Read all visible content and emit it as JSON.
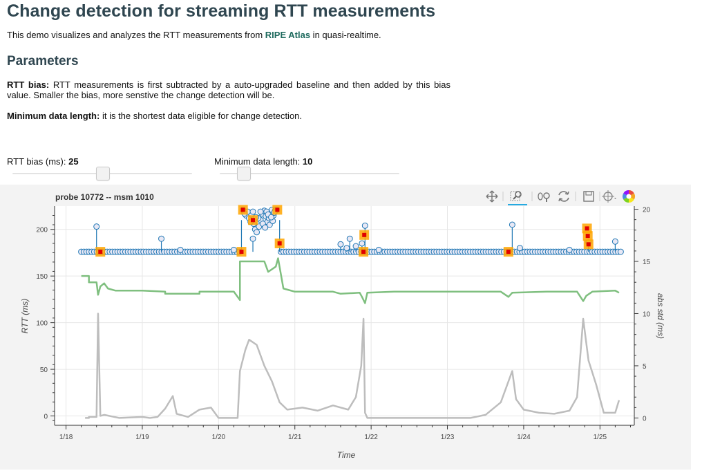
{
  "page": {
    "title": "Change detection for streaming RTT measurements",
    "intro_before": "This demo visualizes and analyzes the RTT measurements from ",
    "intro_link": "RIPE Atlas",
    "intro_after": " in quasi-realtime.",
    "section_title": "Parameters",
    "param1_label": "RTT bias:",
    "param1_text": " RTT measurements is first subtracted by a auto-upgraded baseline and then added by this bias value. Smaller the bias, more senstive the change detection will be.",
    "param2_label": "Minimum data length:",
    "param2_text": " it is the shortest data eligible for change detection."
  },
  "controls": {
    "bias_label": "RTT bias (ms): ",
    "bias_value": "25",
    "bias_fraction": 0.5,
    "minlen_label": "Minimum data length: ",
    "minlen_value": "10",
    "minlen_fraction": 0.13
  },
  "toolbar": {
    "tools": [
      "pan-icon",
      "box-zoom-icon",
      "wheel-zoom-icon",
      "reset-icon",
      "save-icon",
      "hover-icon",
      "bokeh-logo-icon"
    ],
    "active_tool": "box-zoom-icon"
  },
  "chart_data": {
    "type": "line",
    "title": "probe 10772 -- msm 1010",
    "xlabel": "Time",
    "ylabel": "RTT (ms)",
    "y2label": "abs std (ms)",
    "x_ticks": [
      "1/18",
      "1/19",
      "1/20",
      "1/21",
      "1/22",
      "1/23",
      "1/24",
      "1/25"
    ],
    "y_ticks": [
      0,
      50,
      100,
      150,
      200
    ],
    "y2_ticks": [
      0,
      5,
      10,
      15,
      20
    ],
    "xlim": [
      -0.15,
      7.45
    ],
    "ylim": [
      -10,
      225
    ],
    "y2lim": [
      -0.7,
      20.3
    ],
    "grid": true,
    "colors": {
      "rtt": "#1f77b4",
      "marker_fill": "#e8e8f5",
      "baseline": "#7fbf7f",
      "std": "#bdbdbd",
      "change_outer": "#ffa500",
      "change_inner": "#e00000"
    },
    "series": [
      {
        "name": "RTT",
        "kind": "stem",
        "outliers": [
          [
            0.4,
            203
          ],
          [
            1.25,
            190
          ],
          [
            1.5,
            178
          ],
          [
            2.2,
            178
          ],
          [
            2.45,
            190
          ],
          [
            3.6,
            184
          ],
          [
            3.68,
            180
          ],
          [
            3.72,
            190
          ],
          [
            3.8,
            182
          ],
          [
            3.88,
            185
          ],
          [
            3.92,
            204
          ],
          [
            4.1,
            178
          ],
          [
            5.85,
            205
          ],
          [
            5.95,
            180
          ],
          [
            6.6,
            178
          ],
          [
            6.85,
            186
          ],
          [
            7.2,
            187
          ]
        ],
        "base_level": 176,
        "step_level_hi": 210,
        "step_range": [
          2.3,
          2.8
        ]
      },
      {
        "name": "baseline",
        "kind": "line",
        "points": [
          [
            0.2,
            13.6
          ],
          [
            0.3,
            13.6
          ],
          [
            0.3,
            13.0
          ],
          [
            0.4,
            13.0
          ],
          [
            0.42,
            11.8
          ],
          [
            0.45,
            12.6
          ],
          [
            0.5,
            12.9
          ],
          [
            0.55,
            12.4
          ],
          [
            0.65,
            12.2
          ],
          [
            1.0,
            12.2
          ],
          [
            1.3,
            12.1
          ],
          [
            1.3,
            11.9
          ],
          [
            1.75,
            11.9
          ],
          [
            1.75,
            12.1
          ],
          [
            2.2,
            12.1
          ],
          [
            2.28,
            11.3
          ],
          [
            2.28,
            15.0
          ],
          [
            2.6,
            15.0
          ],
          [
            2.65,
            14.0
          ],
          [
            2.75,
            14.5
          ],
          [
            2.78,
            15.3
          ],
          [
            2.85,
            12.4
          ],
          [
            3.0,
            12.1
          ],
          [
            3.5,
            12.1
          ],
          [
            3.6,
            11.9
          ],
          [
            3.85,
            12.0
          ],
          [
            3.88,
            11.6
          ],
          [
            3.92,
            11.0
          ],
          [
            3.95,
            12.0
          ],
          [
            4.3,
            12.1
          ],
          [
            5.7,
            12.1
          ],
          [
            5.8,
            11.6
          ],
          [
            5.85,
            12.0
          ],
          [
            6.3,
            12.1
          ],
          [
            6.7,
            12.1
          ],
          [
            6.78,
            11.2
          ],
          [
            6.82,
            11.7
          ],
          [
            6.9,
            12.1
          ],
          [
            7.2,
            12.2
          ],
          [
            7.25,
            12.0
          ]
        ],
        "color": "#7fbf7f"
      },
      {
        "name": "abs std",
        "kind": "line",
        "points": [
          [
            0.25,
            0.0
          ],
          [
            0.3,
            0.0
          ],
          [
            0.3,
            0.1
          ],
          [
            0.4,
            0.1
          ],
          [
            0.42,
            10.0
          ],
          [
            0.45,
            0.2
          ],
          [
            0.5,
            0.3
          ],
          [
            0.7,
            0.0
          ],
          [
            1.0,
            0.1
          ],
          [
            1.1,
            0.0
          ],
          [
            1.2,
            0.1
          ],
          [
            1.3,
            0.9
          ],
          [
            1.4,
            2.1
          ],
          [
            1.45,
            0.4
          ],
          [
            1.6,
            0.1
          ],
          [
            1.75,
            0.8
          ],
          [
            1.9,
            1.0
          ],
          [
            2.0,
            0.0
          ],
          [
            2.25,
            0.0
          ],
          [
            2.28,
            4.5
          ],
          [
            2.35,
            6.5
          ],
          [
            2.4,
            7.5
          ],
          [
            2.5,
            7.0
          ],
          [
            2.6,
            5.0
          ],
          [
            2.7,
            3.5
          ],
          [
            2.8,
            1.5
          ],
          [
            2.9,
            0.8
          ],
          [
            3.1,
            1.0
          ],
          [
            3.3,
            0.7
          ],
          [
            3.5,
            1.2
          ],
          [
            3.7,
            0.8
          ],
          [
            3.8,
            2.0
          ],
          [
            3.87,
            5.0
          ],
          [
            3.9,
            9.5
          ],
          [
            3.92,
            0.5
          ],
          [
            3.95,
            0.0
          ],
          [
            4.3,
            0.0
          ],
          [
            5.0,
            0.0
          ],
          [
            5.3,
            0.0
          ],
          [
            5.5,
            0.3
          ],
          [
            5.7,
            1.5
          ],
          [
            5.85,
            4.5
          ],
          [
            5.9,
            1.8
          ],
          [
            6.0,
            0.8
          ],
          [
            6.2,
            0.5
          ],
          [
            6.4,
            0.4
          ],
          [
            6.6,
            0.7
          ],
          [
            6.7,
            2.0
          ],
          [
            6.78,
            9.5
          ],
          [
            6.85,
            5.5
          ],
          [
            6.95,
            3.2
          ],
          [
            7.05,
            0.5
          ],
          [
            7.2,
            0.5
          ],
          [
            7.25,
            1.7
          ]
        ],
        "color": "#bdbdbd",
        "axis": "right"
      },
      {
        "name": "change points",
        "kind": "markers",
        "points": [
          [
            0.45,
            176
          ],
          [
            2.3,
            176
          ],
          [
            2.32,
            221
          ],
          [
            2.45,
            210
          ],
          [
            2.77,
            221
          ],
          [
            2.8,
            185
          ],
          [
            3.9,
            176
          ],
          [
            3.91,
            194
          ],
          [
            5.8,
            176
          ],
          [
            6.83,
            201
          ],
          [
            6.84,
            193
          ],
          [
            6.85,
            184
          ]
        ]
      }
    ]
  }
}
